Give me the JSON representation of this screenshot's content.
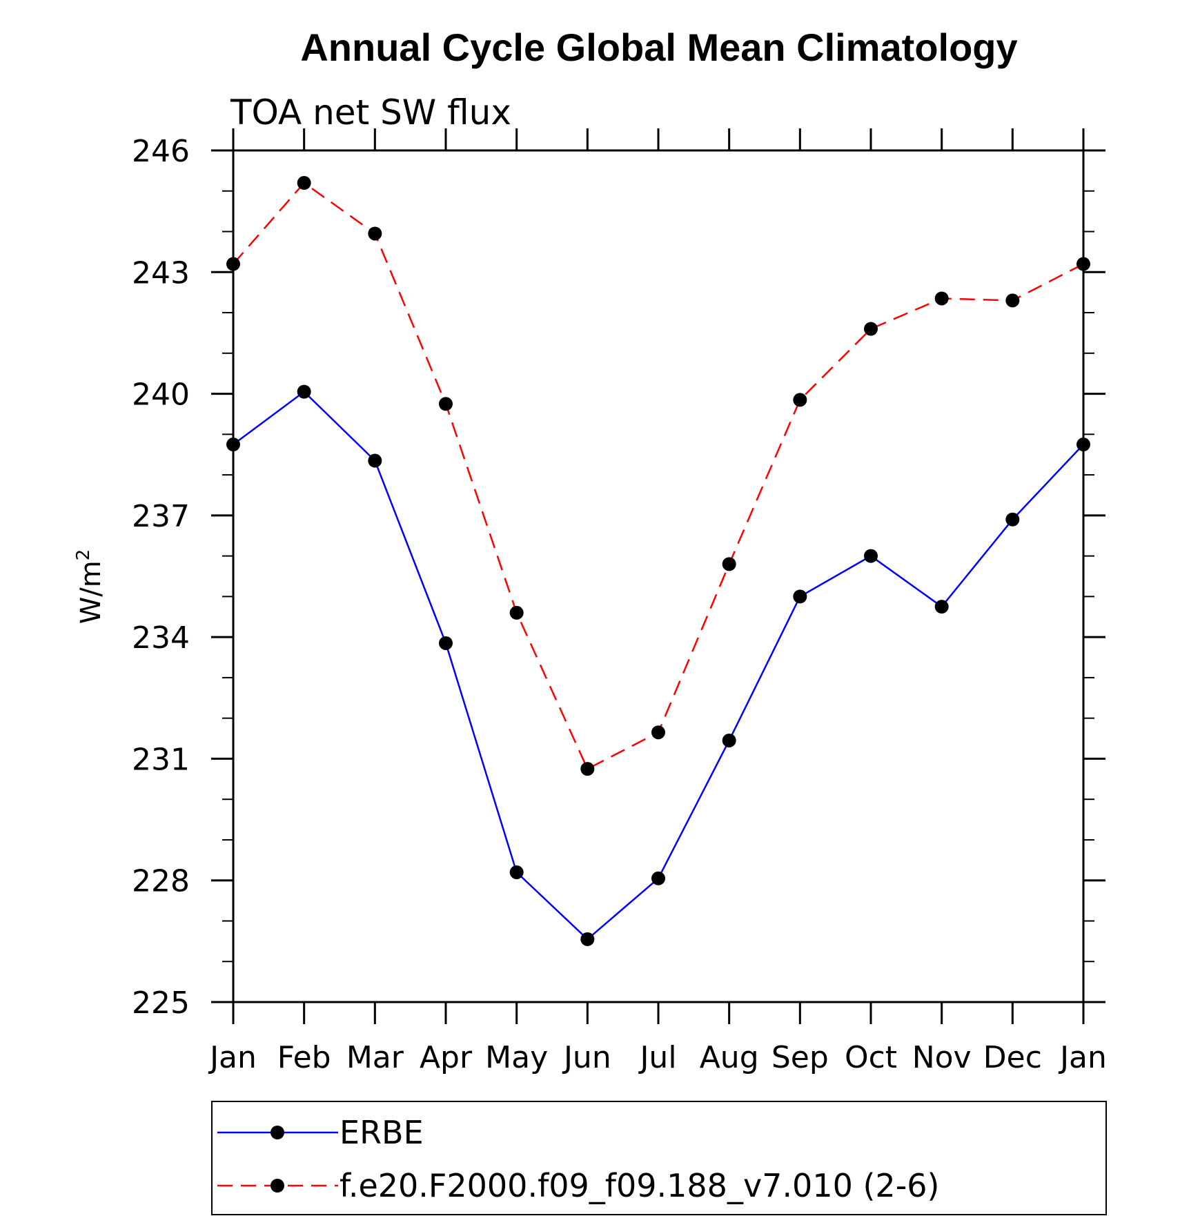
{
  "chart_data": {
    "type": "line",
    "title": "Annual Cycle Global Mean Climatology",
    "subtitle": "TOA net SW flux",
    "ylabel": "W/m",
    "ylabel_sup": "2",
    "xlabel": "",
    "categories": [
      "Jan",
      "Feb",
      "Mar",
      "Apr",
      "May",
      "Jun",
      "Jul",
      "Aug",
      "Sep",
      "Oct",
      "Nov",
      "Dec",
      "Jan"
    ],
    "ylim": [
      225,
      246
    ],
    "yticks": [
      225,
      228,
      231,
      234,
      237,
      240,
      243,
      246
    ],
    "legend_position": "bottom",
    "grid": false,
    "series": [
      {
        "name": "ERBE",
        "color": "#0000ff",
        "dash": "solid",
        "values": [
          238.75,
          240.05,
          238.35,
          233.85,
          228.2,
          226.55,
          228.05,
          231.45,
          235.0,
          236.0,
          234.75,
          236.9,
          238.75
        ]
      },
      {
        "name": "f.e20.F2000.f09_f09.188_v7.010 (2-6)",
        "color": "#ff0000",
        "dash": "dashed",
        "values": [
          243.2,
          245.2,
          243.95,
          239.75,
          234.6,
          230.75,
          231.65,
          235.8,
          239.85,
          241.6,
          242.35,
          242.3,
          243.2
        ]
      }
    ]
  }
}
